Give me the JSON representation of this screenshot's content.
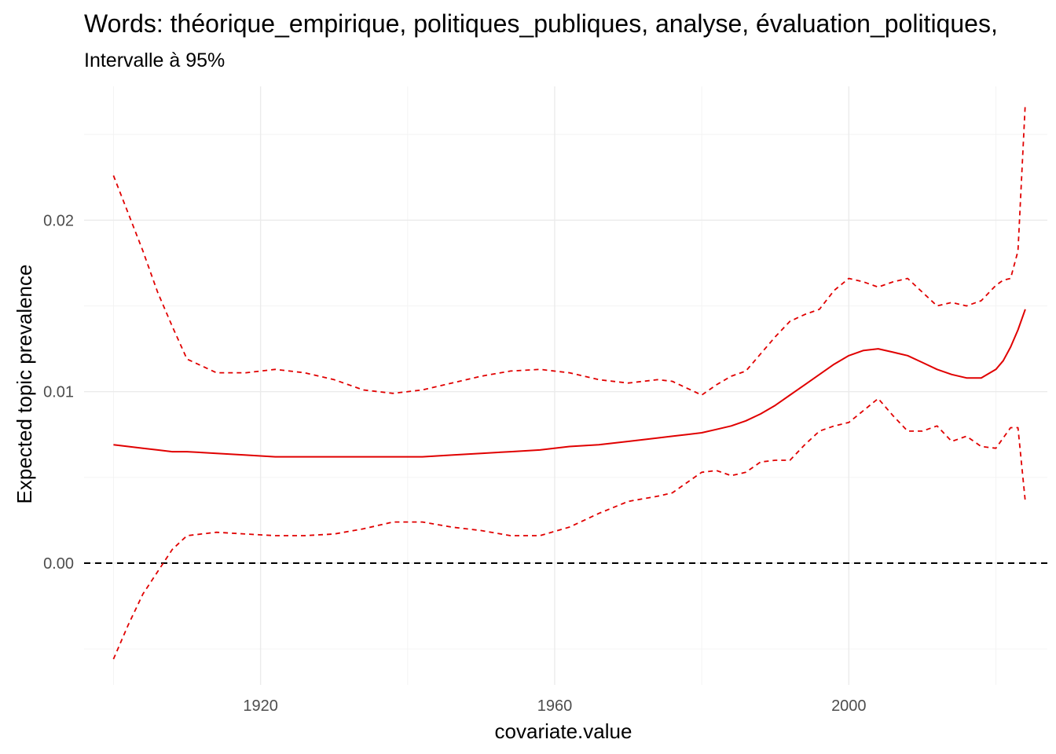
{
  "chart_data": {
    "type": "line",
    "title": "Words: théorique_empirique, politiques_publiques, analyse, évaluation_politiques,",
    "subtitle": "Intervalle à 95%",
    "xlabel": "covariate.value",
    "ylabel": "Expected topic prevalence",
    "xlim": [
      1896,
      2027
    ],
    "ylim": [
      -0.0071,
      0.0278
    ],
    "x_ticks": [
      1920,
      1960,
      2000
    ],
    "y_ticks": [
      0.0,
      0.01,
      0.02
    ],
    "x_tick_labels": [
      "1920",
      "1960",
      "2000"
    ],
    "y_tick_labels": [
      "0.00",
      "0.01",
      "0.02"
    ],
    "x_minor": [
      1900,
      1940,
      1980,
      2020
    ],
    "y_minor": [
      -0.005,
      0.005,
      0.015,
      0.025
    ],
    "grid": true,
    "line_color": "#e00000",
    "reference_line": {
      "y": 0.0,
      "style": "dashed",
      "color": "#000000"
    },
    "x": [
      1900,
      1902,
      1904,
      1906,
      1908,
      1910,
      1914,
      1918,
      1922,
      1926,
      1930,
      1934,
      1938,
      1942,
      1946,
      1950,
      1954,
      1958,
      1962,
      1966,
      1970,
      1974,
      1976,
      1978,
      1980,
      1982,
      1984,
      1986,
      1988,
      1990,
      1992,
      1994,
      1996,
      1998,
      2000,
      2002,
      2004,
      2006,
      2008,
      2010,
      2012,
      2014,
      2016,
      2018,
      2020,
      2021,
      2022,
      2023,
      2024
    ],
    "series": [
      {
        "name": "estimate",
        "style": "solid",
        "values": [
          0.0069,
          0.0068,
          0.0067,
          0.0066,
          0.0065,
          0.0065,
          0.0064,
          0.0063,
          0.0062,
          0.0062,
          0.0062,
          0.0062,
          0.0062,
          0.0062,
          0.0063,
          0.0064,
          0.0065,
          0.0066,
          0.0068,
          0.0069,
          0.0071,
          0.0073,
          0.0074,
          0.0075,
          0.0076,
          0.0078,
          0.008,
          0.0083,
          0.0087,
          0.0092,
          0.0098,
          0.0104,
          0.011,
          0.0116,
          0.0121,
          0.0124,
          0.0125,
          0.0123,
          0.0121,
          0.0117,
          0.0113,
          0.011,
          0.0108,
          0.0108,
          0.0113,
          0.0118,
          0.0126,
          0.0136,
          0.0148
        ]
      },
      {
        "name": "upper",
        "style": "dashed",
        "values": [
          0.0226,
          0.0204,
          0.0182,
          0.0158,
          0.0138,
          0.0119,
          0.0111,
          0.0111,
          0.0113,
          0.0111,
          0.0107,
          0.0101,
          0.0099,
          0.0101,
          0.0105,
          0.0109,
          0.0112,
          0.0113,
          0.0111,
          0.0107,
          0.0105,
          0.0107,
          0.0106,
          0.0102,
          0.0098,
          0.0104,
          0.0109,
          0.0112,
          0.0122,
          0.0132,
          0.0141,
          0.0145,
          0.0148,
          0.0159,
          0.0166,
          0.0164,
          0.0161,
          0.0164,
          0.0166,
          0.0158,
          0.015,
          0.0152,
          0.015,
          0.0153,
          0.0162,
          0.0165,
          0.0166,
          0.0182,
          0.0268
        ]
      },
      {
        "name": "lower",
        "style": "dashed",
        "values": [
          -0.0056,
          -0.0036,
          -0.0018,
          -0.0005,
          0.0008,
          0.0016,
          0.0018,
          0.0017,
          0.0016,
          0.0016,
          0.0017,
          0.002,
          0.0024,
          0.0024,
          0.0021,
          0.0019,
          0.0016,
          0.0016,
          0.0021,
          0.0029,
          0.0036,
          0.0039,
          0.0041,
          0.0047,
          0.0053,
          0.0054,
          0.0051,
          0.0053,
          0.0059,
          0.006,
          0.006,
          0.0069,
          0.0077,
          0.008,
          0.0082,
          0.0089,
          0.0096,
          0.0086,
          0.0077,
          0.0077,
          0.008,
          0.0071,
          0.0074,
          0.0068,
          0.0067,
          0.0073,
          0.0079,
          0.0079,
          0.0036
        ]
      }
    ]
  }
}
